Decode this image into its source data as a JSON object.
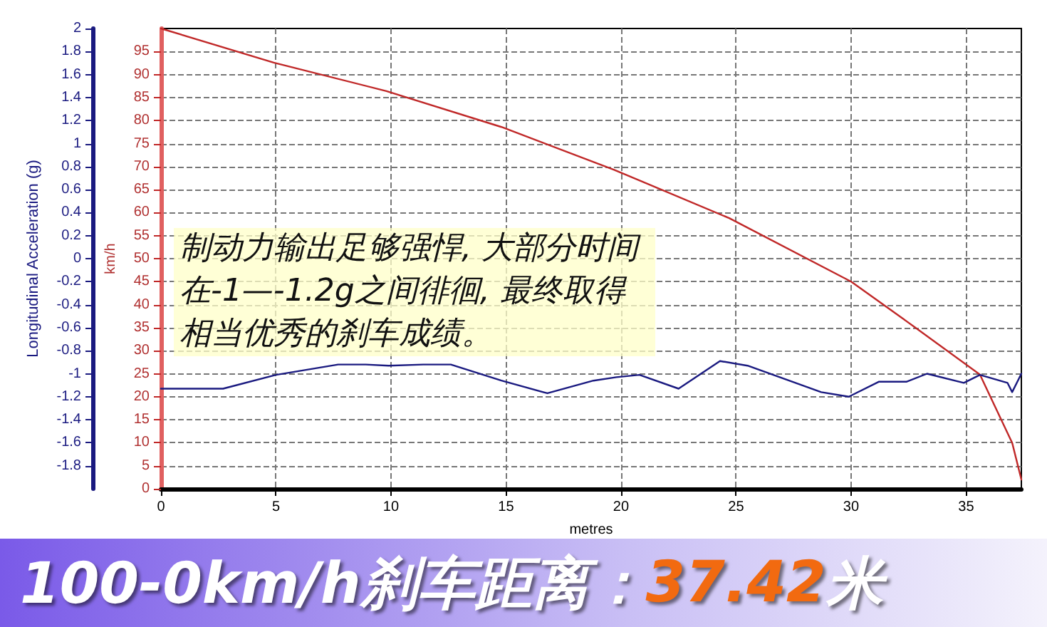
{
  "chart_data": {
    "type": "line",
    "xlabel": "metres",
    "ylabel": "km/h",
    "y2label": "Longitudinal Acceleration (g)",
    "xlim": [
      0,
      37.4
    ],
    "xticks": [
      0,
      5,
      10,
      15,
      20,
      25,
      30,
      35
    ],
    "ylim": [
      0,
      100
    ],
    "yticks": [
      0,
      5,
      10,
      15,
      20,
      25,
      30,
      35,
      40,
      45,
      50,
      55,
      60,
      65,
      70,
      75,
      80,
      85,
      90,
      95
    ],
    "y2lim": [
      -2,
      2
    ],
    "y2ticks": [
      -1.8,
      -1.6,
      -1.4,
      -1.2,
      -1,
      -0.8,
      -0.6,
      -0.4,
      -0.2,
      0,
      0.2,
      0.4,
      0.6,
      0.8,
      1,
      1.2,
      1.4,
      1.6,
      1.8,
      2
    ],
    "grid": true,
    "marker": "none",
    "line_style": "solid",
    "series": [
      {
        "color": "#c02828",
        "x": [
          0,
          4.9,
          9.8,
          14.8,
          19.7,
          24.7,
          30,
          32.8,
          35.6,
          36.1,
          37,
          37.4
        ],
        "values": [
          100,
          92.6,
          86.4,
          78.6,
          69.3,
          58.8,
          45,
          35,
          24.8,
          19.5,
          10,
          2
        ]
      },
      {
        "color": "#1a1a80",
        "axis": "y2",
        "x": [
          0,
          2.7,
          5,
          7.7,
          8.9,
          9.9,
          11.4,
          12.6,
          14.8,
          16.8,
          18.8,
          19.8,
          20.8,
          22.5,
          24.3,
          25.5,
          28.7,
          29.9,
          31.2,
          32.4,
          33.3,
          34.9,
          35.6,
          36.8,
          37,
          37.4
        ],
        "values": [
          -1.13,
          -1.13,
          -1.01,
          -0.92,
          -0.92,
          -0.93,
          -0.92,
          -0.92,
          -1.06,
          -1.17,
          -1.06,
          -1.03,
          -1.01,
          -1.13,
          -0.89,
          -0.93,
          -1.16,
          -1.2,
          -1.07,
          -1.07,
          -1,
          -1.08,
          -1.01,
          -1.08,
          -1.16,
          -1
        ]
      }
    ],
    "annotations": [
      "制动力输出足够强悍, 大部分时间在-1—-1.2g之间徘徊, 最终取得相当优秀的刹车成绩。",
      "100-0km/h刹车距离：37.42米"
    ]
  }
}
